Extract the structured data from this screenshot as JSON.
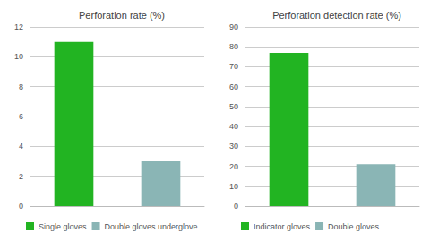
{
  "chart_data": [
    {
      "type": "bar",
      "title": "Perforation rate (%)",
      "categories": [
        "Single gloves",
        "Double gloves underglove"
      ],
      "values": [
        11.0,
        3.0
      ],
      "colors": [
        "#22b422",
        "#8ab5b5"
      ],
      "ylim": [
        0,
        12
      ],
      "yticks": [
        0,
        2,
        4,
        6,
        8,
        10,
        12
      ],
      "grid": true,
      "legend": "bottom",
      "tick_labels": "y"
    },
    {
      "type": "bar",
      "title": "Perforation detection rate (%)",
      "categories": [
        "Indicator gloves",
        "Double gloves"
      ],
      "values": [
        77.0,
        21.0
      ],
      "colors": [
        "#22b422",
        "#8ab5b5"
      ],
      "ylim": [
        0,
        90
      ],
      "yticks": [
        0,
        10,
        20,
        30,
        40,
        50,
        60,
        70,
        80,
        90
      ],
      "grid": true,
      "legend": "bottom",
      "tick_labels": "y"
    }
  ]
}
